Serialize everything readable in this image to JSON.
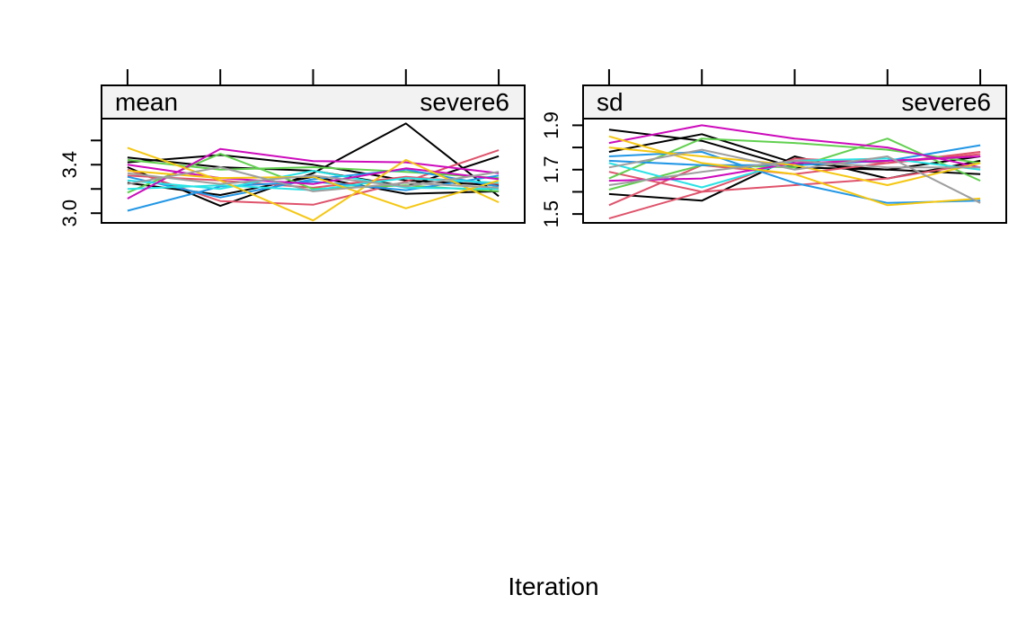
{
  "xlabel": "Iteration",
  "panels": [
    {
      "strip_left": "mean",
      "strip_right": "severe6",
      "ylim": [
        2.92,
        3.78
      ],
      "y_ticks": [
        3.0,
        3.2,
        3.4,
        3.6
      ],
      "y_tick_labels": [
        {
          "value": 3.0,
          "label": "3.0"
        },
        {
          "value": 3.4,
          "label": "3.4"
        }
      ],
      "x_ticks": [
        1,
        2,
        3,
        4,
        5
      ],
      "xlim": [
        0.72,
        5.28
      ]
    },
    {
      "strip_left": "sd",
      "strip_right": "severe6",
      "ylim": [
        1.46,
        1.93
      ],
      "y_ticks": [
        1.5,
        1.6,
        1.7,
        1.8,
        1.9
      ],
      "y_tick_labels": [
        {
          "value": 1.5,
          "label": "1.5"
        },
        {
          "value": 1.7,
          "label": "1.7"
        },
        {
          "value": 1.9,
          "label": "1.9"
        }
      ],
      "x_ticks": [
        1,
        2,
        3,
        4,
        5
      ],
      "xlim": [
        0.72,
        5.28
      ]
    }
  ],
  "chart_data": [
    {
      "type": "line",
      "title": "",
      "xlabel": "Iteration",
      "ylabel": "",
      "panel": "mean severe6",
      "x": [
        1,
        2,
        3,
        4,
        5
      ],
      "ylim": [
        2.92,
        3.78
      ],
      "series": [
        {
          "color": "#000000",
          "values": [
            3.38,
            3.06,
            3.33,
            3.74,
            3.14
          ]
        },
        {
          "color": "#000000",
          "values": [
            3.46,
            3.38,
            3.35,
            3.22,
            3.47
          ]
        },
        {
          "color": "#000000",
          "values": [
            3.25,
            3.15,
            3.3,
            3.16,
            3.18
          ]
        },
        {
          "color": "#000000",
          "values": [
            3.42,
            3.48,
            3.4,
            3.27,
            3.23
          ]
        },
        {
          "color": "#DF536B",
          "values": [
            3.36,
            3.1,
            3.07,
            3.26,
            3.52
          ]
        },
        {
          "color": "#DF536B",
          "values": [
            3.31,
            3.27,
            3.21,
            3.3,
            3.24
          ]
        },
        {
          "color": "#61D04F",
          "values": [
            3.17,
            3.49,
            3.2,
            3.23,
            3.18
          ]
        },
        {
          "color": "#61D04F",
          "values": [
            3.44,
            3.36,
            3.38,
            3.34,
            3.29
          ]
        },
        {
          "color": "#2297E6",
          "values": [
            3.02,
            3.22,
            3.26,
            3.19,
            3.31
          ]
        },
        {
          "color": "#2297E6",
          "values": [
            3.3,
            3.13,
            3.28,
            3.36,
            3.22
          ]
        },
        {
          "color": "#28E2E5",
          "values": [
            3.2,
            3.23,
            3.19,
            3.29,
            3.25
          ]
        },
        {
          "color": "#28E2E5",
          "values": [
            3.27,
            3.2,
            3.35,
            3.21,
            3.2
          ]
        },
        {
          "color": "#CD0BBC",
          "values": [
            3.12,
            3.53,
            3.43,
            3.42,
            3.33
          ]
        },
        {
          "color": "#CD0BBC",
          "values": [
            3.4,
            3.29,
            3.24,
            3.37,
            3.28
          ]
        },
        {
          "color": "#F5C710",
          "values": [
            3.54,
            3.27,
            2.94,
            3.44,
            3.09
          ]
        },
        {
          "color": "#F5C710",
          "values": [
            3.35,
            3.29,
            3.3,
            3.04,
            3.27
          ]
        },
        {
          "color": "#9E9E9E",
          "values": [
            3.24,
            3.38,
            3.18,
            3.25,
            3.21
          ]
        },
        {
          "color": "#9E9E9E",
          "values": [
            3.33,
            3.24,
            3.31,
            3.22,
            3.34
          ]
        }
      ]
    },
    {
      "type": "line",
      "title": "",
      "xlabel": "Iteration",
      "ylabel": "",
      "panel": "sd severe6",
      "x": [
        1,
        2,
        3,
        4,
        5
      ],
      "ylim": [
        1.46,
        1.93
      ],
      "series": [
        {
          "color": "#000000",
          "values": [
            1.78,
            1.86,
            1.73,
            1.7,
            1.68
          ]
        },
        {
          "color": "#000000",
          "values": [
            1.59,
            1.56,
            1.76,
            1.66,
            1.74
          ]
        },
        {
          "color": "#000000",
          "values": [
            1.88,
            1.83,
            1.71,
            1.7,
            1.76
          ]
        },
        {
          "color": "#DF536B",
          "values": [
            1.48,
            1.6,
            1.75,
            1.73,
            1.77
          ]
        },
        {
          "color": "#DF536B",
          "values": [
            1.69,
            1.6,
            1.63,
            1.66,
            1.73
          ]
        },
        {
          "color": "#DF536B",
          "values": [
            1.54,
            1.72,
            1.68,
            1.73,
            1.78
          ]
        },
        {
          "color": "#61D04F",
          "values": [
            1.66,
            1.84,
            1.82,
            1.79,
            1.73
          ]
        },
        {
          "color": "#61D04F",
          "values": [
            1.61,
            1.72,
            1.71,
            1.84,
            1.65
          ]
        },
        {
          "color": "#2297E6",
          "values": [
            1.76,
            1.78,
            1.64,
            1.55,
            1.56
          ]
        },
        {
          "color": "#2297E6",
          "values": [
            1.74,
            1.72,
            1.72,
            1.74,
            1.81
          ]
        },
        {
          "color": "#28E2E5",
          "values": [
            1.73,
            1.62,
            1.74,
            1.75,
            1.7
          ]
        },
        {
          "color": "#CD0BBC",
          "values": [
            1.82,
            1.9,
            1.84,
            1.8,
            1.71
          ]
        },
        {
          "color": "#CD0BBC",
          "values": [
            1.65,
            1.66,
            1.73,
            1.74,
            1.76
          ]
        },
        {
          "color": "#F5C710",
          "values": [
            1.85,
            1.73,
            1.68,
            1.54,
            1.57
          ]
        },
        {
          "color": "#F5C710",
          "values": [
            1.8,
            1.76,
            1.72,
            1.63,
            1.73
          ]
        },
        {
          "color": "#9E9E9E",
          "values": [
            1.71,
            1.79,
            1.7,
            1.76,
            1.55
          ]
        },
        {
          "color": "#9E9E9E",
          "values": [
            1.63,
            1.69,
            1.74,
            1.71,
            1.71
          ]
        }
      ]
    }
  ]
}
